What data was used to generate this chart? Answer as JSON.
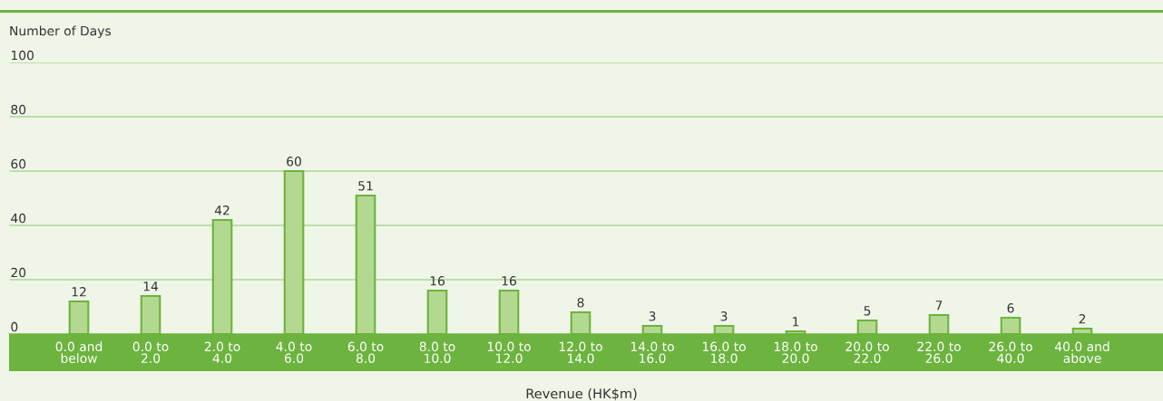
{
  "chart_data": {
    "type": "bar",
    "ylabel": "Number of Days",
    "xlabel": "Revenue (HK$m)",
    "categories": [
      "0.0 and\nbelow",
      "0.0 to\n2.0",
      "2.0 to\n4.0",
      "4.0 to\n6.0",
      "6.0 to\n8.0",
      "8.0 to\n10.0",
      "10.0 to\n12.0",
      "12.0 to\n14.0",
      "14.0 to\n16.0",
      "16.0 to\n18.0",
      "18.0 to\n20.0",
      "20.0 to\n22.0",
      "22.0 to\n26.0",
      "26.0 to\n40.0",
      "40.0 and\nabove"
    ],
    "values": [
      12,
      14,
      42,
      60,
      51,
      16,
      16,
      8,
      3,
      3,
      1,
      5,
      7,
      6,
      2
    ],
    "color": "#b3d88f",
    "ylim": [
      0,
      100
    ],
    "yticks": [
      0,
      20,
      40,
      60,
      80,
      100
    ],
    "grid": "y",
    "data_labels": true
  }
}
